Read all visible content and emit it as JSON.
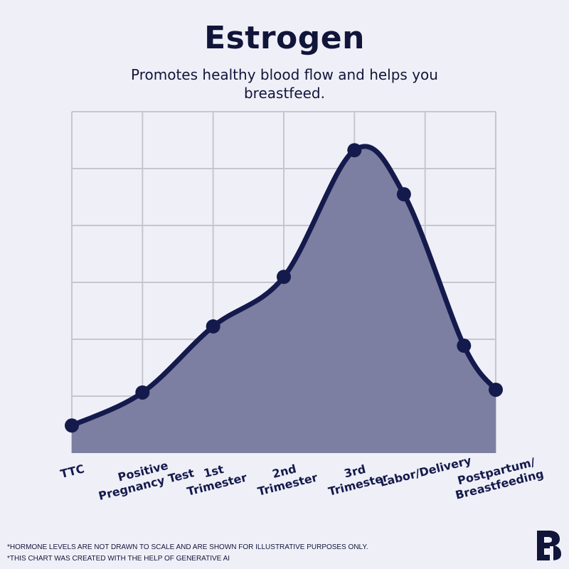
{
  "header": {
    "title": "Estrogen",
    "subtitle": "Promotes healthy blood flow and helps you breastfeed."
  },
  "footnotes": [
    "*HORMONE LEVELS ARE NOT DRAWN TO SCALE AND ARE SHOWN FOR ILLUSTRATIVE PURPOSES ONLY.",
    "*THIS CHART WAS CREATED WITH THE HELP OF GENERATIVE AI"
  ],
  "logo": {
    "icon": "brand-b-logo"
  },
  "colors": {
    "line": "#151a4d",
    "fill": "#7c7fa1",
    "grid": "#c6c6cf",
    "background": "#eff0f7"
  },
  "chart_data": {
    "type": "area",
    "title": "Estrogen",
    "subtitle": "Promotes healthy blood flow and helps you breastfeed.",
    "xlabel": "",
    "ylabel": "",
    "categories": [
      "TTC",
      "Positive Pregnancy Test",
      "1st Trimester",
      "2nd Trimester",
      "3rd Trimester",
      "Labor/Delivery",
      "Postpartum/ Breastfeeding"
    ],
    "tick_labels": [
      [
        "TTC"
      ],
      [
        "Positive",
        "Pregnancy Test"
      ],
      [
        "1st",
        "Trimester"
      ],
      [
        "2nd",
        "Trimester"
      ],
      [
        "3rd",
        "Trimester"
      ],
      [
        "Labor/Delivery"
      ],
      [
        "Postpartum/",
        "Breastfeeding"
      ]
    ],
    "x": [
      0,
      1,
      2,
      3,
      4,
      4.7,
      5.55,
      6
    ],
    "values": [
      0.3,
      0.9,
      2.1,
      3.0,
      5.3,
      4.5,
      1.75,
      0.95
    ],
    "xlim": [
      0,
      6
    ],
    "ylim": [
      -0.2,
      6
    ],
    "grid": true,
    "y_gridlines": [
      0,
      1,
      2,
      3,
      4,
      5,
      6
    ],
    "legend": "none"
  }
}
